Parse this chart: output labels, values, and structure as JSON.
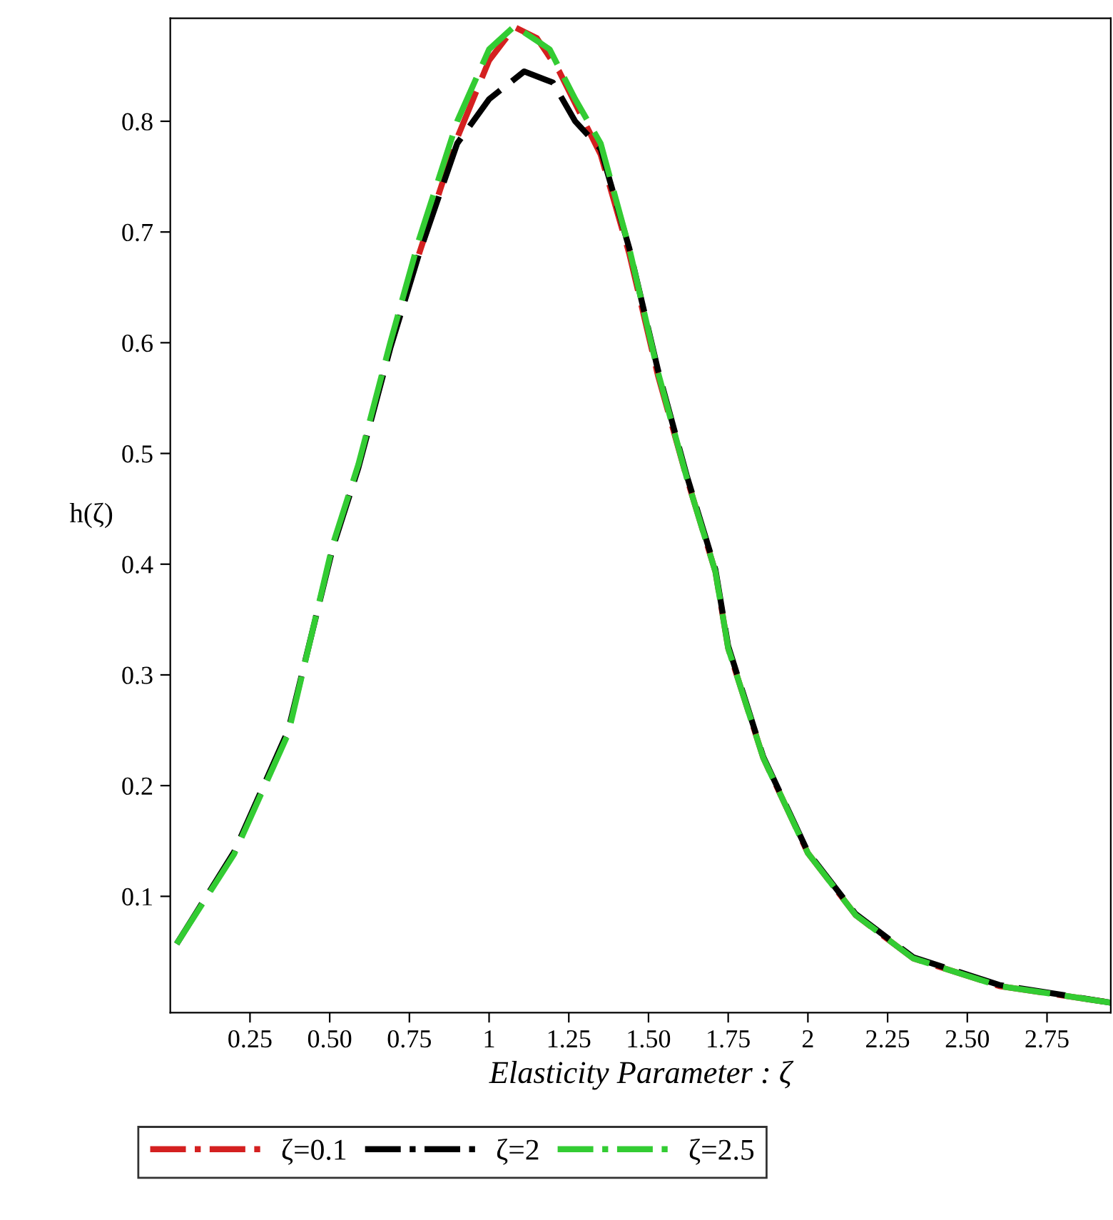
{
  "chart_data": {
    "type": "line",
    "xlabel": "Elasticity Parameter : ζ",
    "ylabel": "h(ζ)",
    "xlim": [
      0,
      2.95
    ],
    "ylim": [
      -0.005,
      0.893
    ],
    "xticks": [
      0.25,
      {
        "value": 0.5,
        "label": "0.50"
      },
      0.75,
      1,
      1.25,
      {
        "value": 1.5,
        "label": "1.50"
      },
      1.75,
      2,
      2.25,
      {
        "value": 2.5,
        "label": "2.50"
      },
      2.75
    ],
    "yticks": [
      0.1,
      0.2,
      0.3,
      0.4,
      0.5,
      0.6,
      0.7,
      0.8
    ],
    "grid": false,
    "legend": "bottom",
    "marker": "none",
    "line_style": "dashed",
    "series": [
      {
        "name": "ζ=0.1",
        "color": "#d42020",
        "x": [
          0.78,
          0.9,
          1.0,
          1.08,
          1.15,
          1.22,
          1.35,
          1.44,
          1.53,
          1.62,
          1.71,
          1.75,
          1.86,
          2.0,
          2.15,
          2.33,
          2.6,
          2.95
        ],
        "values": [
          0.68,
          0.785,
          0.855,
          0.885,
          0.875,
          0.845,
          0.77,
          0.68,
          0.57,
          0.478,
          0.393,
          0.324,
          0.225,
          0.139,
          0.083,
          0.044,
          0.019,
          0.004
        ]
      },
      {
        "name": "ζ=2",
        "color": "#000000",
        "x": [
          0.02,
          0.2,
          0.37,
          0.51,
          0.59,
          0.69,
          0.78,
          0.9,
          1.0,
          1.11,
          1.2,
          1.27,
          1.35,
          1.44,
          1.53,
          1.62,
          1.71,
          1.75,
          1.86,
          2.0,
          2.15,
          2.33,
          2.6,
          2.95
        ],
        "values": [
          0.057,
          0.14,
          0.25,
          0.415,
          0.487,
          0.595,
          0.68,
          0.78,
          0.82,
          0.845,
          0.835,
          0.8,
          0.775,
          0.685,
          0.575,
          0.48,
          0.395,
          0.326,
          0.226,
          0.14,
          0.084,
          0.045,
          0.02,
          0.004
        ]
      },
      {
        "name": "ζ=2.5",
        "color": "#33cc33",
        "x": [
          0.02,
          0.2,
          0.37,
          0.51,
          0.59,
          0.69,
          0.78,
          0.9,
          1.0,
          1.08,
          1.19,
          1.27,
          1.35,
          1.44,
          1.53,
          1.62,
          1.71,
          1.75,
          1.86,
          2.0,
          2.15,
          2.33,
          2.6,
          2.95
        ],
        "values": [
          0.057,
          0.138,
          0.247,
          0.418,
          0.49,
          0.6,
          0.693,
          0.8,
          0.865,
          0.886,
          0.865,
          0.82,
          0.78,
          0.685,
          0.573,
          0.478,
          0.393,
          0.324,
          0.225,
          0.139,
          0.083,
          0.044,
          0.019,
          0.004
        ]
      }
    ]
  }
}
